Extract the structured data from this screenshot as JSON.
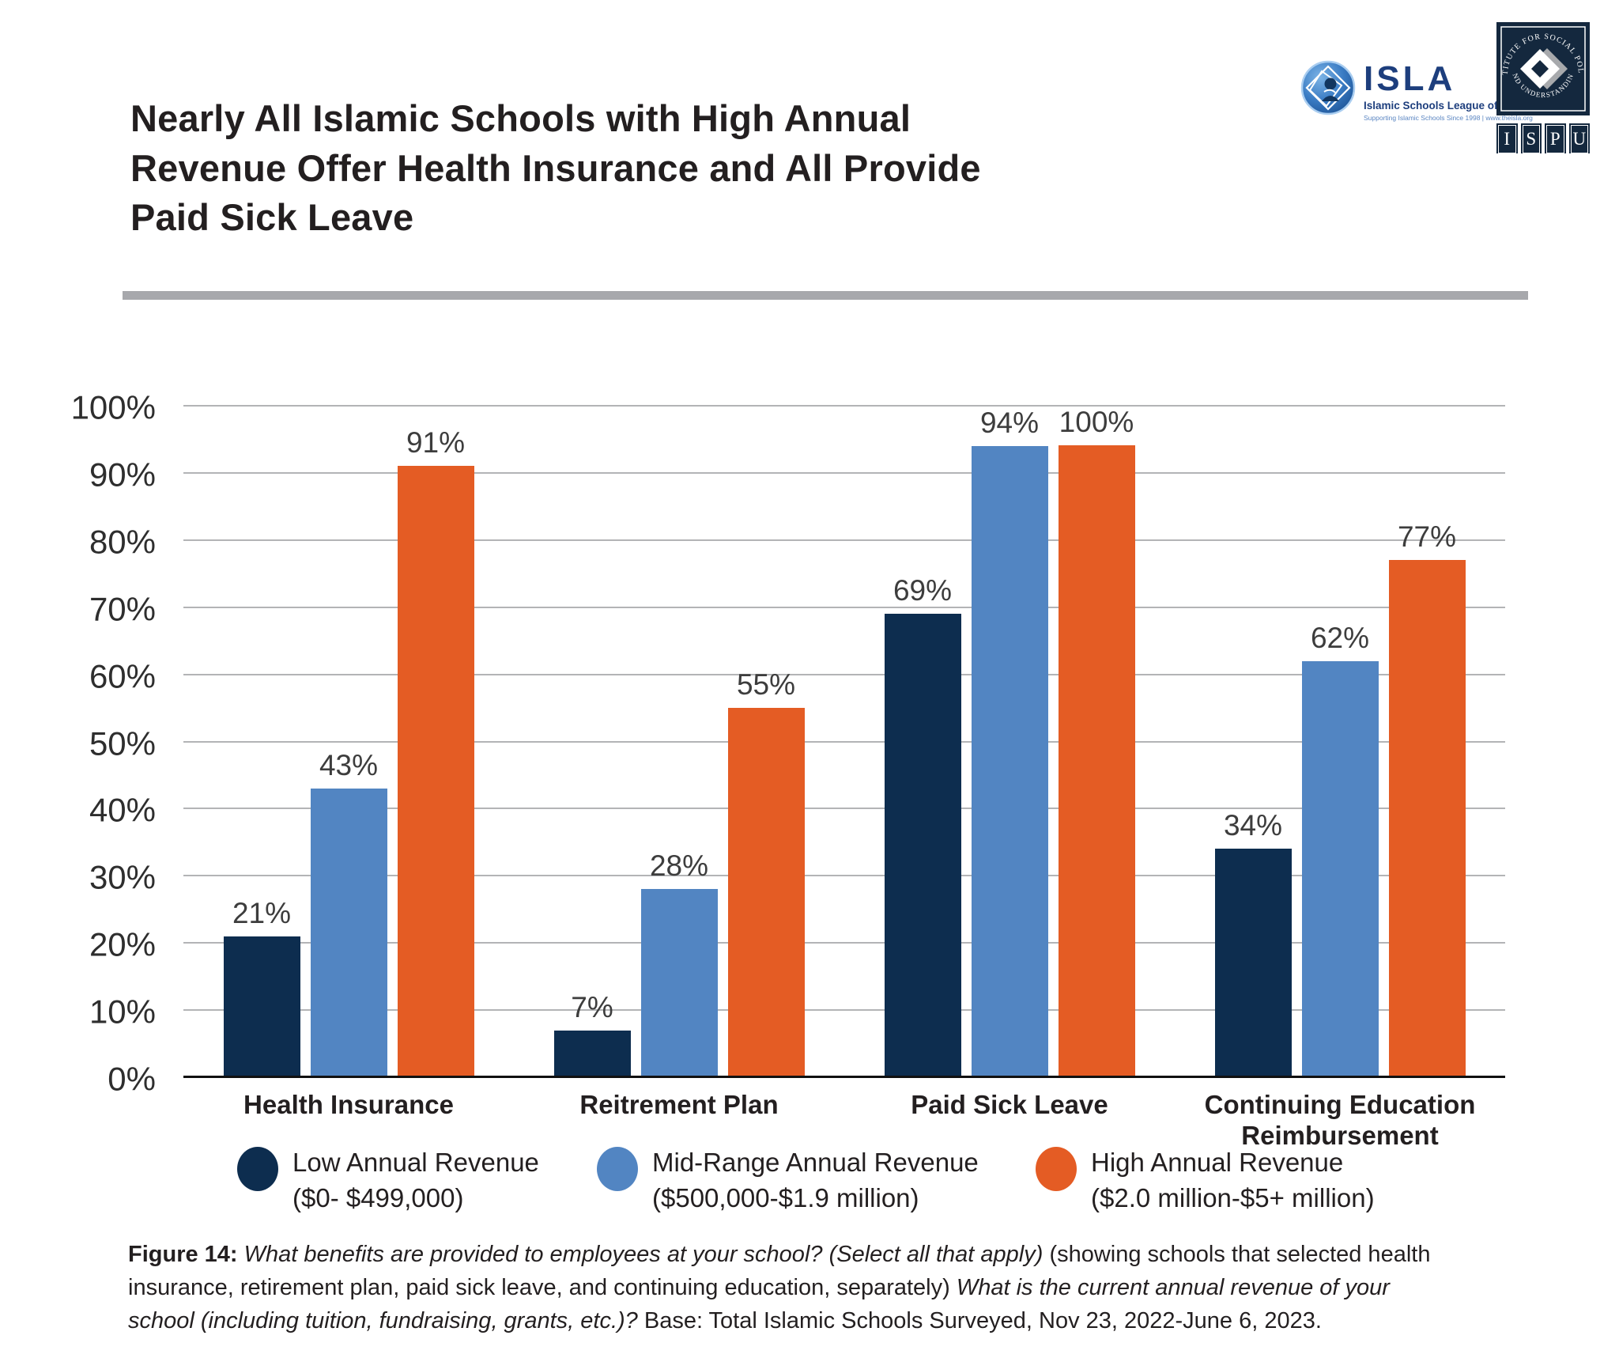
{
  "header": {
    "title_lines": [
      "Nearly All Islamic Schools with High Annual",
      "Revenue Offer Health Insurance and All Provide",
      "Paid Sick Leave"
    ]
  },
  "logos": {
    "isla": {
      "name": "ISLA",
      "subtitle": "Islamic Schools League of America",
      "tagline": "Supporting Islamic Schools Since 1998 | www.theisla.org"
    },
    "ispu": {
      "arc_top": "INSTITUTE FOR SOCIAL POLICY",
      "arc_bottom": "AND UNDERSTANDING",
      "letters": [
        "I",
        "S",
        "P",
        "U"
      ]
    }
  },
  "chart_data": {
    "type": "bar",
    "title": "Nearly All Islamic Schools with High Annual Revenue Offer Health Insurance and All Provide Paid Sick Leave",
    "categories": [
      "Health Insurance",
      "Reitrement Plan",
      "Paid Sick Leave",
      "Continuing Education Reimbursement"
    ],
    "series": [
      {
        "name": "Low Annual Revenue",
        "range": "($0- $499,000)",
        "color": "#0d2d4f",
        "values": [
          21,
          7,
          69,
          34
        ]
      },
      {
        "name": "Mid-Range Annual Revenue",
        "range": "($500,000-$1.9 million)",
        "color": "#5285c2",
        "values": [
          43,
          28,
          94,
          62
        ]
      },
      {
        "name": "High Annual Revenue",
        "range": "($2.0 million-$5+ million)",
        "color": "#e45c24",
        "values": [
          91,
          55,
          100,
          77
        ]
      }
    ],
    "value_suffix": "%",
    "y_ticks": [
      "0%",
      "10%",
      "20%",
      "30%",
      "40%",
      "50%",
      "60%",
      "70%",
      "80%",
      "90%",
      "100%"
    ],
    "ylim": [
      0,
      100
    ],
    "grid": true,
    "legend_position": "bottom"
  },
  "footer": {
    "segments": [
      {
        "text": "Figure 14: "
      },
      {
        "text": "What benefits are provided to employees at your school? (Select all that apply) "
      },
      {
        "text": "(showing schools that selected health insurance, retirement plan, paid sick leave, and continuing education, separately) "
      },
      {
        "text": "What is the current annual revenue of your school (including tuition, fundraising, grants, etc.)? "
      },
      {
        "text": "Base: Total Islamic Schools Surveyed, Nov 23, 2022-June 6, 2023."
      }
    ]
  }
}
